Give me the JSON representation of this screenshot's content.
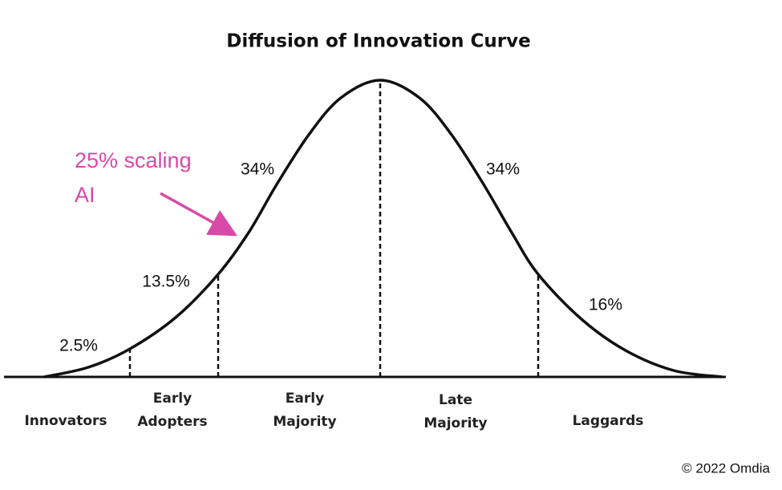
{
  "title": "Diffusion of Innovation Curve",
  "annotation": {
    "lines": [
      "25% scaling",
      "AI"
    ]
  },
  "segments": [
    {
      "label": [
        "Innovators"
      ],
      "share": "2.5%"
    },
    {
      "label": [
        "Early",
        "Adopters"
      ],
      "share": "13.5%"
    },
    {
      "label": [
        "Early",
        "Majority"
      ],
      "share": "34%"
    },
    {
      "label": [
        "Late",
        "Majority"
      ],
      "share": "34%"
    },
    {
      "label": [
        "Laggards"
      ],
      "share": "16%"
    }
  ],
  "footer": "© 2022 Omdia"
}
